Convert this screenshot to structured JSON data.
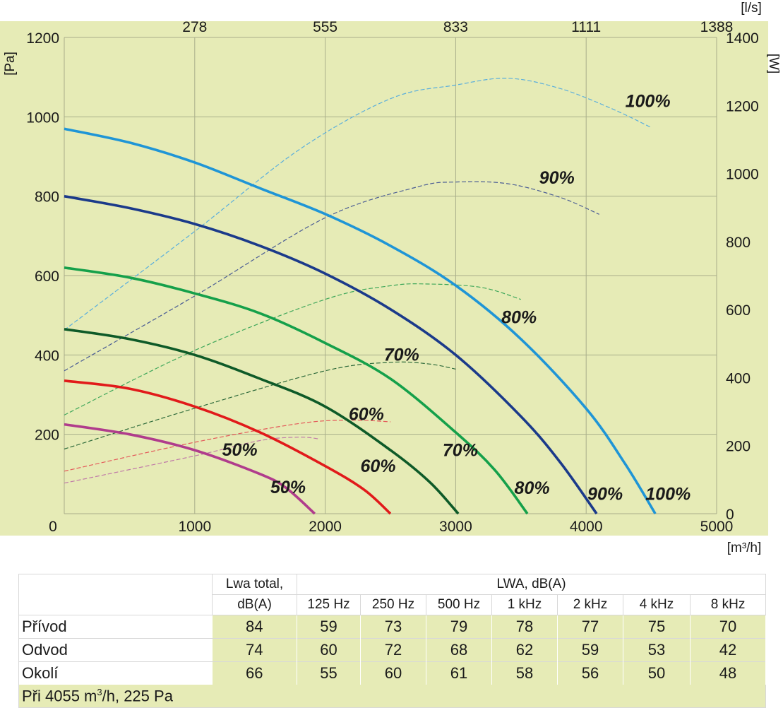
{
  "chart_data": {
    "type": "line",
    "x_unit": "[m³/h]",
    "x_range": [
      0,
      5000
    ],
    "x_ticks": [
      "0",
      "1000",
      "2000",
      "3000",
      "4000",
      "5000"
    ],
    "x2_unit": "[l/s]",
    "x2_ticks": [
      "278",
      "555",
      "833",
      "1111",
      "1388"
    ],
    "y_unit": "[Pa]",
    "y_range": [
      0,
      1200
    ],
    "y_ticks": [
      "200",
      "400",
      "600",
      "800",
      "1000",
      "1200"
    ],
    "y2_unit": "[W]",
    "y2_range": [
      0,
      1400
    ],
    "y2_ticks": [
      "0",
      "200",
      "400",
      "600",
      "800",
      "1000",
      "1200",
      "1400"
    ],
    "grid": true,
    "pressure_series": [
      {
        "name": "100%",
        "color": "#1f95d6",
        "points": [
          [
            0,
            970
          ],
          [
            500,
            935
          ],
          [
            1000,
            885
          ],
          [
            1500,
            820
          ],
          [
            2000,
            755
          ],
          [
            2500,
            675
          ],
          [
            3000,
            575
          ],
          [
            3500,
            440
          ],
          [
            4000,
            265
          ],
          [
            4300,
            125
          ],
          [
            4530,
            0
          ]
        ]
      },
      {
        "name": "90%",
        "color": "#1b3a8a",
        "points": [
          [
            0,
            800
          ],
          [
            500,
            770
          ],
          [
            1000,
            730
          ],
          [
            1500,
            675
          ],
          [
            2000,
            605
          ],
          [
            2500,
            515
          ],
          [
            3000,
            400
          ],
          [
            3500,
            245
          ],
          [
            3800,
            130
          ],
          [
            4080,
            0
          ]
        ]
      },
      {
        "name": "80%",
        "color": "#15a04a",
        "points": [
          [
            0,
            620
          ],
          [
            500,
            595
          ],
          [
            1000,
            555
          ],
          [
            1500,
            505
          ],
          [
            2000,
            430
          ],
          [
            2500,
            340
          ],
          [
            3000,
            205
          ],
          [
            3300,
            110
          ],
          [
            3550,
            0
          ]
        ]
      },
      {
        "name": "70%",
        "color": "#0e5a28",
        "points": [
          [
            0,
            465
          ],
          [
            500,
            440
          ],
          [
            1000,
            400
          ],
          [
            1500,
            340
          ],
          [
            2000,
            270
          ],
          [
            2500,
            160
          ],
          [
            2800,
            80
          ],
          [
            3020,
            0
          ]
        ]
      },
      {
        "name": "60%",
        "color": "#e11a1a",
        "points": [
          [
            0,
            335
          ],
          [
            500,
            315
          ],
          [
            1000,
            270
          ],
          [
            1500,
            205
          ],
          [
            2000,
            120
          ],
          [
            2300,
            60
          ],
          [
            2500,
            0
          ]
        ]
      },
      {
        "name": "50%",
        "color": "#b03c8c",
        "points": [
          [
            0,
            225
          ],
          [
            500,
            200
          ],
          [
            1000,
            160
          ],
          [
            1500,
            100
          ],
          [
            1700,
            65
          ],
          [
            1920,
            0
          ]
        ]
      }
    ],
    "power_series": [
      {
        "name": "100%",
        "color": "#5aaedc",
        "points": [
          [
            0,
            540
          ],
          [
            1000,
            830
          ],
          [
            1800,
            1070
          ],
          [
            2500,
            1220
          ],
          [
            3000,
            1260
          ],
          [
            3400,
            1280
          ],
          [
            3800,
            1250
          ],
          [
            4200,
            1190
          ],
          [
            4500,
            1135
          ]
        ]
      },
      {
        "name": "90%",
        "color": "#4a5c94",
        "points": [
          [
            0,
            420
          ],
          [
            1000,
            640
          ],
          [
            2000,
            870
          ],
          [
            2700,
            960
          ],
          [
            3000,
            975
          ],
          [
            3400,
            970
          ],
          [
            3800,
            930
          ],
          [
            4100,
            880
          ]
        ]
      },
      {
        "name": "80%",
        "color": "#3fa75a",
        "points": [
          [
            0,
            290
          ],
          [
            1000,
            480
          ],
          [
            2000,
            630
          ],
          [
            2500,
            670
          ],
          [
            2800,
            675
          ],
          [
            3200,
            665
          ],
          [
            3500,
            630
          ]
        ]
      },
      {
        "name": "70%",
        "color": "#2e6a3a",
        "points": [
          [
            0,
            190
          ],
          [
            1000,
            310
          ],
          [
            2000,
            420
          ],
          [
            2500,
            445
          ],
          [
            2800,
            440
          ],
          [
            3000,
            425
          ]
        ]
      },
      {
        "name": "60%",
        "color": "#e45a5a",
        "points": [
          [
            0,
            125
          ],
          [
            1000,
            210
          ],
          [
            1800,
            265
          ],
          [
            2200,
            275
          ],
          [
            2500,
            270
          ]
        ]
      },
      {
        "name": "50%",
        "color": "#c07aa8",
        "points": [
          [
            0,
            90
          ],
          [
            1000,
            170
          ],
          [
            1500,
            215
          ],
          [
            1800,
            225
          ],
          [
            1950,
            220
          ]
        ]
      }
    ],
    "pressure_labels": [
      "100%",
      "90%",
      "80%",
      "70%",
      "60%",
      "50%"
    ],
    "power_labels": [
      "100%",
      "90%",
      "80%",
      "70%",
      "60%",
      "50%"
    ]
  },
  "table": {
    "col_total_line1": "Lwa total,",
    "col_total_line2": "dB(A)",
    "band_header": "LWA, dB(A)",
    "bands": [
      "125 Hz",
      "250 Hz",
      "500 Hz",
      "1 kHz",
      "2 kHz",
      "4 kHz",
      "8 kHz"
    ],
    "rows": [
      {
        "label": "Přívod",
        "values": [
          "84",
          "59",
          "73",
          "79",
          "78",
          "77",
          "75",
          "70"
        ]
      },
      {
        "label": "Odvod",
        "values": [
          "74",
          "60",
          "72",
          "68",
          "62",
          "59",
          "53",
          "42"
        ]
      },
      {
        "label": "Okolí",
        "values": [
          "66",
          "55",
          "60",
          "61",
          "58",
          "56",
          "50",
          "48"
        ]
      }
    ],
    "footnote_prefix": "Při 4055 m",
    "footnote_sup": "3",
    "footnote_suffix": "/h, 225 Pa"
  },
  "colors": {
    "plot_background": "#e6ebb6",
    "grid": "#a9ae8a"
  }
}
